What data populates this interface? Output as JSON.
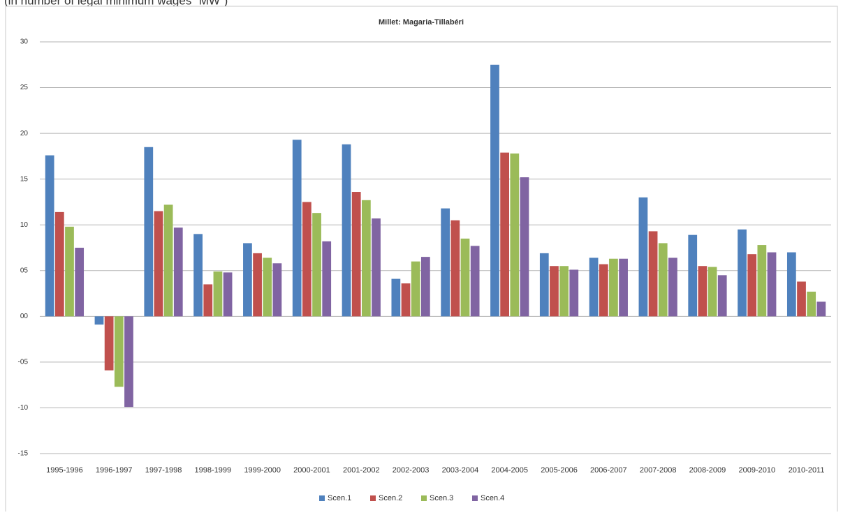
{
  "chart_data": {
    "type": "bar",
    "caption": "(in number of legal minimum wages “MW”)",
    "title": "Millet: Magaria-Tillabéri",
    "categories": [
      "1995-1996",
      "1996-1997",
      "1997-1998",
      "1998-1999",
      "1999-2000",
      "2000-2001",
      "2001-2002",
      "2002-2003",
      "2003-2004",
      "2004-2005",
      "2005-2006",
      "2006-2007",
      "2007-2008",
      "2008-2009",
      "2009-2010",
      "2010-2011"
    ],
    "series": [
      {
        "name": "Scen.1",
        "color": "#4f81bd",
        "values": [
          17.6,
          -0.9,
          18.5,
          9.0,
          8.0,
          19.3,
          18.8,
          4.1,
          11.8,
          27.5,
          6.9,
          6.4,
          13.0,
          8.9,
          9.5,
          7.0
        ]
      },
      {
        "name": "Scen.2",
        "color": "#c0504d",
        "values": [
          11.4,
          -5.9,
          11.5,
          3.5,
          6.9,
          12.5,
          13.6,
          3.6,
          10.5,
          17.9,
          5.5,
          5.7,
          9.3,
          5.5,
          6.8,
          3.8
        ]
      },
      {
        "name": "Scen.3",
        "color": "#9bbb59",
        "values": [
          9.8,
          -7.7,
          12.2,
          4.9,
          6.4,
          11.3,
          12.7,
          6.0,
          8.5,
          17.8,
          5.5,
          6.3,
          8.0,
          5.4,
          7.8,
          2.7
        ]
      },
      {
        "name": "Scen.4",
        "color": "#8064a2",
        "values": [
          7.5,
          -9.9,
          9.7,
          4.8,
          5.8,
          8.2,
          10.7,
          6.5,
          7.7,
          15.2,
          5.1,
          6.3,
          6.4,
          4.5,
          7.0,
          1.6
        ]
      }
    ],
    "ylim": [
      -15,
      30
    ],
    "yticks": [
      -15,
      {
        "value": -10,
        "label": "-10"
      },
      {
        "value": -5,
        "label": "-05"
      },
      {
        "value": 0,
        "label": "00"
      },
      {
        "value": 5,
        "label": "05"
      },
      10,
      15,
      20,
      25,
      30
    ],
    "grid": true,
    "legend": "bottom"
  }
}
